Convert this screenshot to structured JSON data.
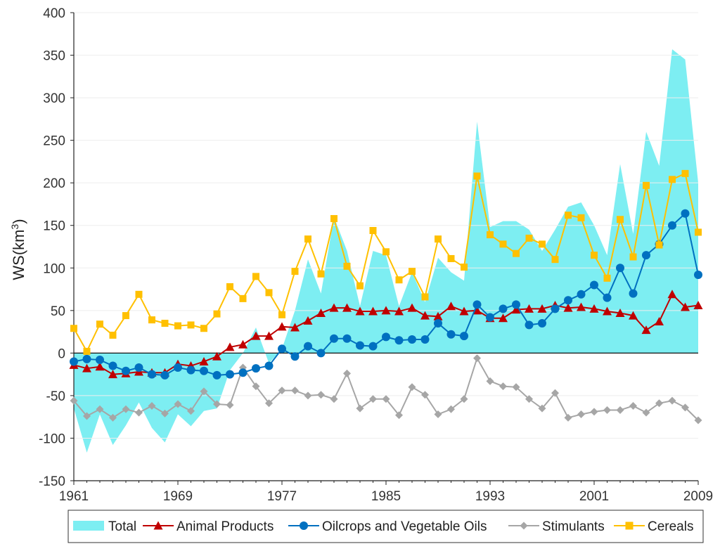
{
  "chart_data": {
    "type": "line",
    "title": "",
    "xlabel": "",
    "ylabel": "WS(km",
    "ylabel_sup": "3",
    "ylabel_suffix": ")",
    "xlim": [
      1961,
      2009
    ],
    "ylim": [
      -150,
      400
    ],
    "yticks": [
      -150,
      -100,
      -50,
      0,
      50,
      100,
      150,
      200,
      250,
      300,
      350,
      400
    ],
    "xtick_labels": [
      "1961",
      "1969",
      "1977",
      "1985",
      "1993",
      "2001",
      "2009"
    ],
    "xtick_values": [
      1961,
      1969,
      1977,
      1985,
      1993,
      2001,
      2009
    ],
    "x": [
      1961,
      1962,
      1963,
      1964,
      1965,
      1966,
      1967,
      1968,
      1969,
      1970,
      1971,
      1972,
      1973,
      1974,
      1975,
      1976,
      1977,
      1978,
      1979,
      1980,
      1981,
      1982,
      1983,
      1984,
      1985,
      1986,
      1987,
      1988,
      1989,
      1990,
      1991,
      1992,
      1993,
      1994,
      1995,
      1996,
      1997,
      1998,
      1999,
      2000,
      2001,
      2002,
      2003,
      2004,
      2005,
      2006,
      2007,
      2008,
      2009
    ],
    "legend_position": "bottom",
    "series": [
      {
        "name": "Total",
        "kind": "area",
        "color": "#7deef2",
        "values": [
          -65,
          -117,
          -72,
          -108,
          -85,
          -58,
          -88,
          -105,
          -72,
          -86,
          -68,
          -65,
          -20,
          0,
          30,
          -12,
          5,
          50,
          110,
          70,
          160,
          120,
          55,
          120,
          115,
          55,
          95,
          60,
          112,
          95,
          85,
          272,
          148,
          155,
          155,
          145,
          120,
          145,
          172,
          177,
          150,
          115,
          222,
          140,
          260,
          220,
          357,
          345,
          200
        ]
      },
      {
        "name": "Animal Products",
        "kind": "line",
        "marker": "triangle",
        "color": "#c00000",
        "values": [
          -14,
          -18,
          -16,
          -25,
          -24,
          -22,
          -23,
          -23,
          -13,
          -15,
          -10,
          -4,
          7,
          10,
          20,
          20,
          31,
          30,
          38,
          47,
          53,
          53,
          49,
          49,
          50,
          49,
          53,
          44,
          43,
          55,
          49,
          50,
          41,
          41,
          51,
          52,
          52,
          56,
          53,
          54,
          52,
          49,
          47,
          44,
          27,
          37,
          69,
          54,
          56
        ]
      },
      {
        "name": "Oilcrops and Vegetable Oils",
        "kind": "line",
        "marker": "circle",
        "color": "#0070c0",
        "values": [
          -10,
          -7,
          -8,
          -15,
          -21,
          -17,
          -25,
          -26,
          -17,
          -20,
          -21,
          -26,
          -25,
          -23,
          -18,
          -15,
          5,
          -4,
          8,
          0,
          17,
          17,
          9,
          8,
          19,
          15,
          16,
          16,
          35,
          22,
          20,
          57,
          42,
          52,
          57,
          33,
          35,
          52,
          62,
          69,
          80,
          65,
          100,
          70,
          115,
          128,
          150,
          164,
          92
        ]
      },
      {
        "name": "Stimulants",
        "kind": "line",
        "marker": "diamond",
        "color": "#a6a6a6",
        "values": [
          -56,
          -74,
          -66,
          -76,
          -66,
          -70,
          -62,
          -71,
          -60,
          -68,
          -45,
          -60,
          -61,
          -17,
          -39,
          -59,
          -44,
          -44,
          -50,
          -49,
          -54,
          -24,
          -65,
          -54,
          -54,
          -73,
          -40,
          -49,
          -72,
          -66,
          -54,
          -6,
          -33,
          -39,
          -40,
          -54,
          -65,
          -47,
          -76,
          -72,
          -69,
          -67,
          -67,
          -62,
          -70,
          -59,
          -56,
          -64,
          -79
        ]
      },
      {
        "name": "Cereals",
        "kind": "line",
        "marker": "square",
        "color": "#ffc000",
        "values": [
          29,
          2,
          34,
          21,
          44,
          69,
          39,
          35,
          32,
          33,
          29,
          46,
          78,
          64,
          90,
          71,
          45,
          96,
          134,
          93,
          158,
          102,
          79,
          144,
          119,
          86,
          96,
          66,
          134,
          111,
          101,
          208,
          139,
          128,
          117,
          135,
          128,
          110,
          162,
          159,
          115,
          88,
          157,
          113,
          197,
          127,
          204,
          211,
          142
        ]
      }
    ]
  }
}
